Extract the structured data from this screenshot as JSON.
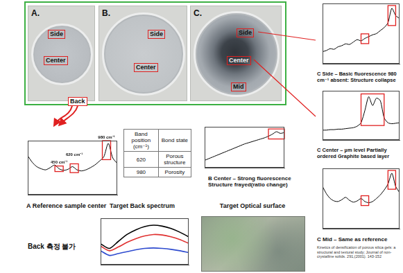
{
  "photos": [
    {
      "label": "A.",
      "regions": [
        "Side",
        "Center"
      ]
    },
    {
      "label": "B.",
      "regions": [
        "Side",
        "Center"
      ]
    },
    {
      "label": "C.",
      "regions": [
        "Side",
        "Center",
        "Mid"
      ]
    }
  ],
  "back_region": "Back",
  "table": {
    "header": [
      "Band position (cm⁻¹)",
      "Bond state"
    ],
    "rows": [
      [
        620,
        "Porous structure"
      ],
      [
        980,
        "Porosity"
      ]
    ]
  },
  "back_note": "Back 측정 불가",
  "optical_surface": {
    "title": "Target Optical surface"
  },
  "citation": "Kinetics of densification of porous silica gels: a structural and textural study; Journal of non-crystalline solids. 291,(2001). 143-152",
  "chart_data": [
    {
      "type": "line",
      "title": "A Reference sample center",
      "x": [
        100,
        150,
        200,
        250,
        300,
        350,
        400,
        450,
        500,
        550,
        600,
        650,
        700,
        750,
        800,
        850,
        900,
        950,
        1000,
        1050,
        1100
      ],
      "values": [
        72,
        60,
        52,
        48,
        46,
        50,
        55,
        48,
        45,
        47,
        52,
        46,
        44,
        46,
        50,
        55,
        62,
        70,
        95,
        68,
        58
      ],
      "color": "#000000",
      "xlim": [
        100,
        1100
      ],
      "ylim": [
        0,
        100
      ],
      "tick_labels": false,
      "annotations": [
        {
          "text": "450 cm⁻¹",
          "x": 450
        },
        {
          "text": "620 cm⁻¹",
          "x": 620
        },
        {
          "text": "980 cm⁻¹",
          "x": 980
        }
      ]
    },
    {
      "type": "line",
      "title": "B Center – Strong fluorescence Structure frayed(ratio change)",
      "x": [
        100,
        150,
        200,
        250,
        300,
        350,
        400,
        450,
        500,
        550,
        600,
        650,
        700,
        750,
        800,
        850,
        900,
        950,
        1000,
        1050,
        1100
      ],
      "values": [
        18,
        22,
        26,
        30,
        34,
        38,
        42,
        46,
        50,
        54,
        58,
        61,
        64,
        67,
        70,
        73,
        77,
        82,
        88,
        84,
        86
      ],
      "color": "#000000",
      "xlim": [
        100,
        1100
      ],
      "ylim": [
        0,
        100
      ],
      "tick_labels": false,
      "highlights": [
        [
          900,
          1100
        ]
      ]
    },
    {
      "type": "line",
      "title": "C Side – Basic fluorescence 980 cm⁻¹ absent: Structure collapse",
      "x": [
        100,
        150,
        200,
        250,
        300,
        350,
        400,
        450,
        500,
        550,
        600,
        650,
        700,
        750,
        800,
        850,
        900,
        950,
        1000,
        1050,
        1100
      ],
      "values": [
        20,
        22,
        25,
        24,
        28,
        30,
        33,
        32,
        36,
        40,
        38,
        42,
        45,
        48,
        50,
        55,
        60,
        68,
        92,
        80,
        75
      ],
      "color": "#000000",
      "xlim": [
        100,
        1100
      ],
      "ylim": [
        0,
        100
      ],
      "tick_labels": false,
      "highlights": [
        [
          600,
          700
        ],
        [
          950,
          1050
        ]
      ]
    },
    {
      "type": "line",
      "title": "C Center – µm level Partially ordered Graphite based layer",
      "x": [
        100,
        150,
        200,
        250,
        300,
        350,
        400,
        450,
        500,
        550,
        600,
        650,
        700,
        750,
        800,
        850,
        900,
        950,
        1000,
        1050,
        1100
      ],
      "values": [
        20,
        20,
        21,
        21,
        22,
        22,
        23,
        24,
        25,
        28,
        35,
        60,
        88,
        70,
        85,
        80,
        45,
        35,
        33,
        34,
        35
      ],
      "color": "#000000",
      "xlim": [
        100,
        1100
      ],
      "ylim": [
        0,
        100
      ],
      "tick_labels": false,
      "highlights": [
        [
          600,
          900
        ]
      ]
    },
    {
      "type": "line",
      "title": "C Mid – Same as reference",
      "x": [
        100,
        150,
        200,
        250,
        300,
        350,
        400,
        450,
        500,
        550,
        600,
        650,
        700,
        750,
        800,
        850,
        900,
        950,
        1000,
        1050,
        1100
      ],
      "values": [
        70,
        58,
        50,
        46,
        45,
        48,
        52,
        47,
        44,
        46,
        50,
        45,
        43,
        45,
        50,
        56,
        64,
        74,
        92,
        70,
        60
      ],
      "color": "#000000",
      "xlim": [
        100,
        1100
      ],
      "ylim": [
        0,
        100
      ],
      "tick_labels": false,
      "highlights": [
        [
          600,
          700
        ],
        [
          950,
          1050
        ]
      ]
    },
    {
      "type": "line",
      "title": "Target Back spectrum",
      "x": [
        100,
        200,
        300,
        400,
        500,
        600,
        700,
        800,
        900,
        1000,
        1100
      ],
      "series": [
        {
          "color": "#000000",
          "values": [
            45,
            35,
            50,
            65,
            75,
            82,
            85,
            83,
            78,
            70,
            60
          ]
        },
        {
          "color": "#e0302f",
          "values": [
            40,
            30,
            38,
            48,
            56,
            62,
            65,
            64,
            60,
            54,
            46
          ]
        },
        {
          "color": "#2e4bcf",
          "values": [
            30,
            20,
            24,
            28,
            32,
            35,
            36,
            35,
            33,
            30,
            26
          ]
        }
      ],
      "xlim": [
        100,
        1100
      ],
      "ylim": [
        0,
        100
      ],
      "tick_labels": false
    }
  ]
}
